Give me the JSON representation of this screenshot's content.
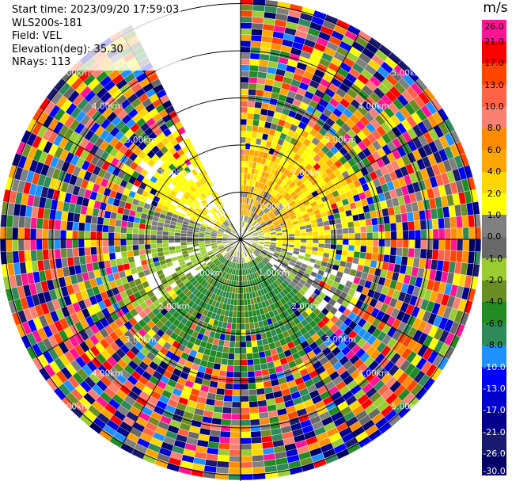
{
  "info": {
    "start_time": "Start time: 2023/09/20 17:59:03",
    "instrument": "WLS200s-181",
    "field": "Field: VEL",
    "elevation": "Elevation(deg): 35.30",
    "nrays": "NRays: 113"
  },
  "chart_data": {
    "type": "ppi",
    "field": "VEL",
    "units": "m/s",
    "range_rings_km": [
      1.0,
      2.0,
      3.0,
      4.0,
      5.0
    ],
    "ring_labels": [
      "1.00km",
      "2.00km",
      "3.00km",
      "4.00km",
      "5.00km"
    ],
    "spokes_deg": [
      0,
      30,
      60,
      90,
      120,
      150,
      180,
      210,
      240,
      270,
      300,
      330
    ],
    "colorbar": {
      "title": "m/s",
      "ticks": [
        "26.0",
        "21.0",
        "17.0",
        "13.0",
        "10.0",
        "8.0",
        "6.0",
        "4.0",
        "2.0",
        "1.0",
        "0.0",
        "-1.0",
        "-2.0",
        "-4.0",
        "-6.0",
        "-8.0",
        "-10.0",
        "-13.0",
        "-17.0",
        "-21.0",
        "-26.0",
        "-30.0"
      ],
      "colors": [
        "#ff1493",
        "#ff0000",
        "#ff4500",
        "#ff6347",
        "#fa8072",
        "#ff8c00",
        "#ffa500",
        "#ffd700",
        "#ffff00",
        "#808080",
        "#696969",
        "#9acd32",
        "#6b8e23",
        "#228b22",
        "#2e8b57",
        "#1e90ff",
        "#0000ff",
        "#0000cd",
        "#00008b",
        "#191970",
        "#000066"
      ]
    },
    "data_gap_azimuth_deg": [
      335,
      358
    ]
  }
}
